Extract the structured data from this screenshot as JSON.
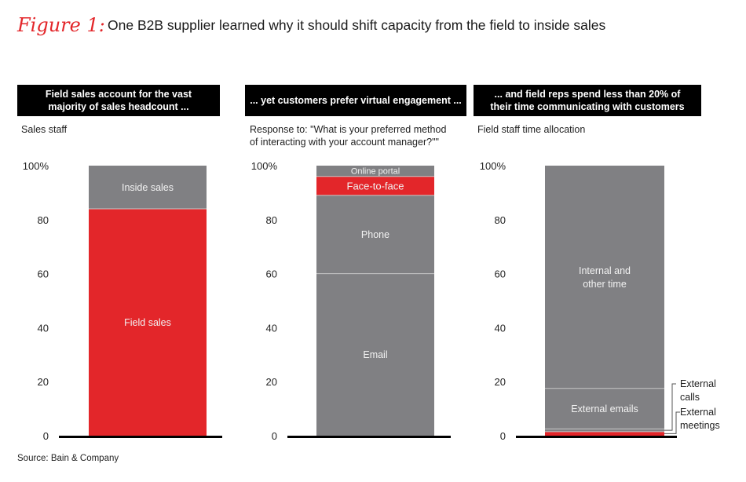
{
  "figure": {
    "label": "Figure 1:",
    "title": "One B2B supplier learned why it should shift capacity from the field to inside sales",
    "source": "Source: Bain & Company"
  },
  "colors": {
    "red": "#e3262a",
    "gray": "#808083",
    "divider": "#c8c8c8",
    "axis": "#000000"
  },
  "chart_data": [
    {
      "type": "bar",
      "stacked": true,
      "header": "Field sales account for the vast majority of sales headcount ...",
      "header_lines": [
        "Field sales account for the vast",
        "majority of sales headcount ..."
      ],
      "subtitle_lines": [
        "Sales staff"
      ],
      "ylim": [
        0,
        100
      ],
      "yticks": [
        "0",
        "20",
        "40",
        "60",
        "80",
        "100%"
      ],
      "segments": [
        {
          "name": "Field sales",
          "value": 84,
          "color": "#e3262a"
        },
        {
          "name": "Inside sales",
          "value": 16,
          "color": "#808083"
        }
      ]
    },
    {
      "type": "bar",
      "stacked": true,
      "header": "... yet customers prefer virtual engagement ...",
      "header_lines": [
        "... yet customers prefer virtual engagement ..."
      ],
      "subtitle_lines": [
        "Response to: \"What is your preferred method",
        "of interacting with your account manager?\"\""
      ],
      "ylim": [
        0,
        100
      ],
      "yticks": [
        "0",
        "20",
        "40",
        "60",
        "80",
        "100%"
      ],
      "segments": [
        {
          "name": "Email",
          "value": 60,
          "color": "#808083"
        },
        {
          "name": "Phone",
          "value": 29,
          "color": "#808083"
        },
        {
          "name": "Face-to-face",
          "value": 7,
          "color": "#e3262a"
        },
        {
          "name": "Online portal",
          "value": 4,
          "color": "#808083"
        }
      ]
    },
    {
      "type": "bar",
      "stacked": true,
      "header": "... and field reps spend less than 20% of their time communicating with customers",
      "header_lines": [
        "... and field reps spend less than 20% of",
        "their time communicating with customers"
      ],
      "subtitle_lines": [
        "Field staff time allocation"
      ],
      "ylim": [
        0,
        100
      ],
      "yticks": [
        "0",
        "20",
        "40",
        "60",
        "80",
        "100%"
      ],
      "segments": [
        {
          "name": "External meetings",
          "value": 1.5,
          "color": "#e3262a",
          "label_lines": [
            "External",
            "meetings"
          ],
          "callout": true
        },
        {
          "name": "External calls",
          "value": 1,
          "color": "#808083",
          "label_lines": [
            "External",
            "calls"
          ],
          "callout": true
        },
        {
          "name": "External emails",
          "value": 15,
          "color": "#808083",
          "label_lines": [
            "External emails"
          ]
        },
        {
          "name": "Internal and other time",
          "value": 82.5,
          "color": "#808083",
          "label_lines": [
            "Internal and",
            "other time"
          ]
        }
      ]
    }
  ]
}
